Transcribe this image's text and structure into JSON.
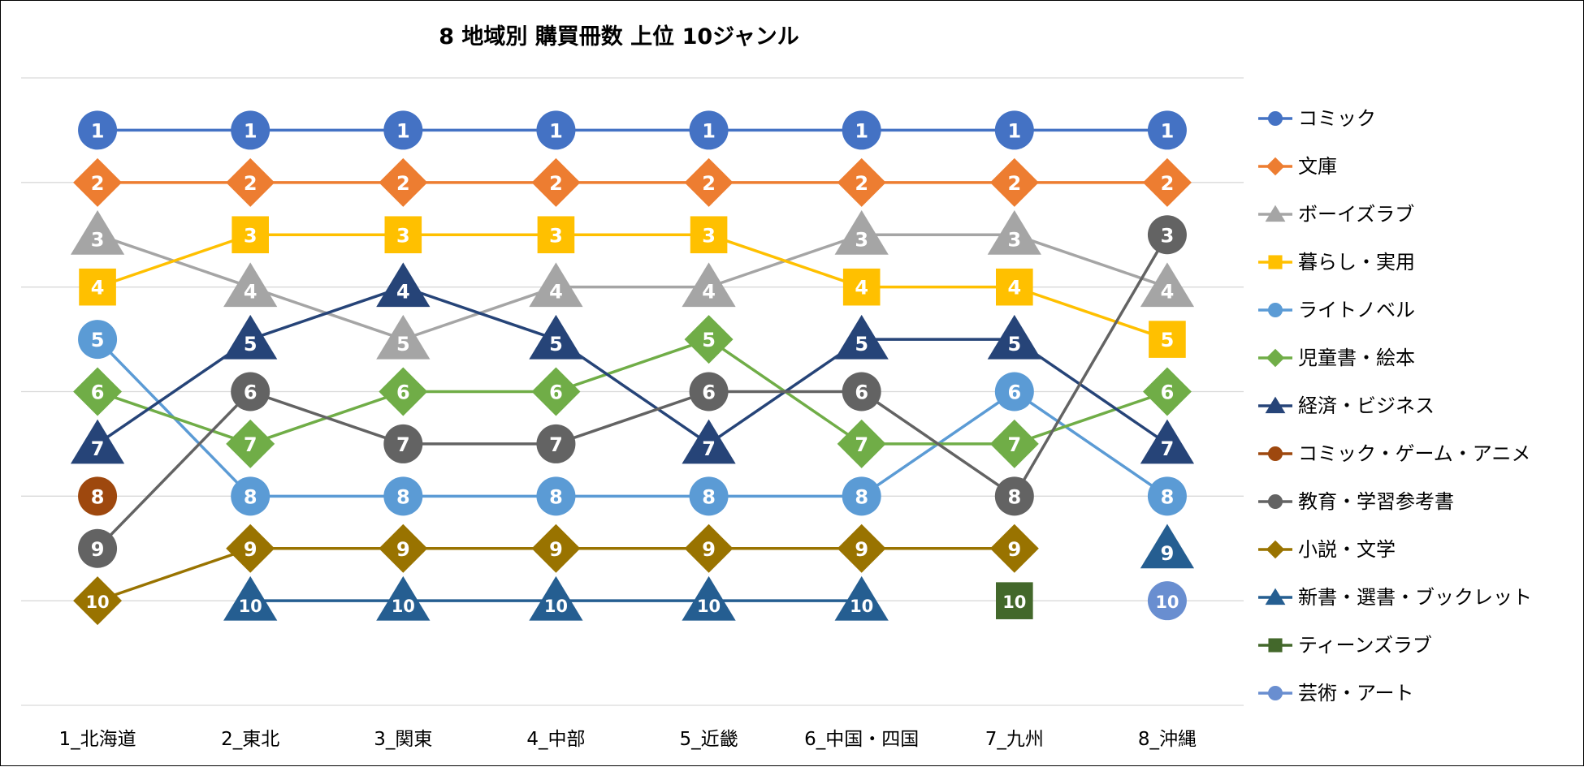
{
  "chart_data": {
    "type": "line",
    "title": "8 地域別 購買冊数 上位 10ジャンル",
    "categories": [
      "1_北海道",
      "2_東北",
      "3_関東",
      "4_中部",
      "5_近畿",
      "6_中国・四国",
      "7_九州",
      "8_沖縄"
    ],
    "y_axis": {
      "reversed": true,
      "range": [
        0,
        12
      ],
      "grid": true,
      "tick_labels": false
    },
    "legend_position": "right",
    "series": [
      {
        "name": "コミック",
        "color": "#4472C4",
        "marker": "circle",
        "values": [
          1,
          1,
          1,
          1,
          1,
          1,
          1,
          1
        ]
      },
      {
        "name": "文庫",
        "color": "#ED7D31",
        "marker": "diamond",
        "values": [
          2,
          2,
          2,
          2,
          2,
          2,
          2,
          2
        ]
      },
      {
        "name": "ボーイズラブ",
        "color": "#A5A5A5",
        "marker": "triangle",
        "values": [
          3,
          4,
          5,
          4,
          4,
          3,
          3,
          4
        ]
      },
      {
        "name": "暮らし・実用",
        "color": "#FFC000",
        "marker": "square",
        "values": [
          4,
          3,
          3,
          3,
          3,
          4,
          4,
          5
        ]
      },
      {
        "name": "ライトノベル",
        "color": "#5B9BD5",
        "marker": "circle",
        "values": [
          5,
          8,
          8,
          8,
          8,
          8,
          6,
          8
        ]
      },
      {
        "name": "児童書・絵本",
        "color": "#70AD47",
        "marker": "diamond",
        "values": [
          6,
          7,
          6,
          6,
          5,
          7,
          7,
          6
        ]
      },
      {
        "name": "経済・ビジネス",
        "color": "#264478",
        "marker": "triangle",
        "values": [
          7,
          5,
          4,
          5,
          7,
          5,
          5,
          7
        ]
      },
      {
        "name": "コミック・ゲーム・アニメ",
        "color": "#9E480E",
        "marker": "circle",
        "values": [
          8,
          null,
          null,
          null,
          null,
          null,
          null,
          null
        ]
      },
      {
        "name": "教育・学習参考書",
        "color": "#636363",
        "marker": "circle",
        "values": [
          9,
          6,
          7,
          7,
          6,
          6,
          8,
          3
        ]
      },
      {
        "name": "小説・文学",
        "color": "#997300",
        "marker": "diamond",
        "values": [
          10,
          9,
          9,
          9,
          9,
          9,
          9,
          null
        ]
      },
      {
        "name": "新書・選書・ブックレット",
        "color": "#255E91",
        "marker": "triangle",
        "values": [
          null,
          10,
          10,
          10,
          10,
          10,
          null,
          9
        ]
      },
      {
        "name": "ティーンズラブ",
        "color": "#43682B",
        "marker": "square",
        "values": [
          null,
          null,
          null,
          null,
          null,
          null,
          10,
          null
        ]
      },
      {
        "name": "芸術・アート",
        "color": "#698ED0",
        "marker": "circle",
        "values": [
          null,
          null,
          null,
          null,
          null,
          null,
          null,
          10
        ]
      }
    ]
  }
}
